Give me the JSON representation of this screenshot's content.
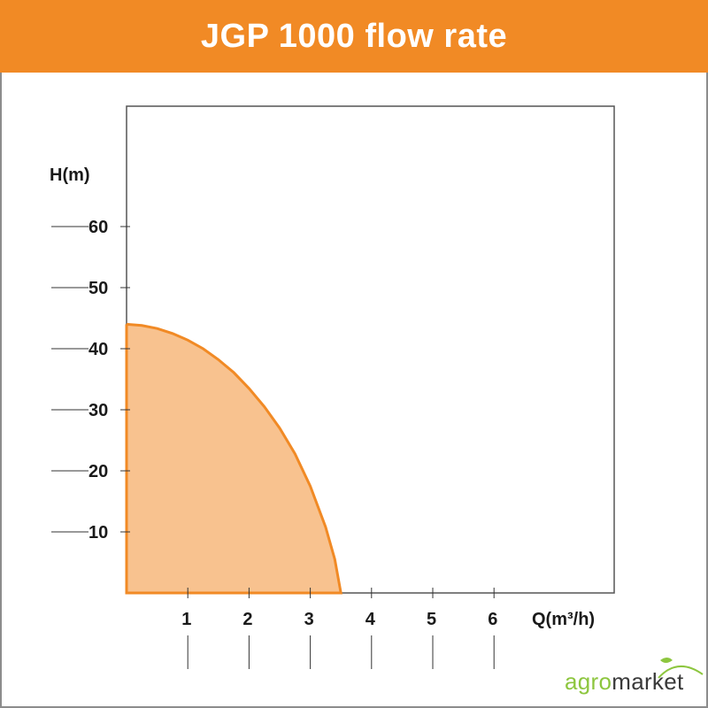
{
  "header": {
    "title": "JGP 1000 flow rate"
  },
  "chart_data": {
    "type": "area",
    "ylabel": "H(m)",
    "xlabel": "Q(m³/h)",
    "xlim": [
      0,
      8
    ],
    "ylim": [
      0,
      80
    ],
    "x_ticks": [
      1,
      2,
      3,
      4,
      5,
      6
    ],
    "y_ticks": [
      10,
      20,
      30,
      40,
      50,
      60
    ],
    "series": [
      {
        "x": [
          0,
          0.25,
          0.5,
          0.75,
          1.0,
          1.25,
          1.5,
          1.75,
          2.0,
          2.25,
          2.5,
          2.75,
          3.0,
          3.25,
          3.4,
          3.5
        ],
        "y": [
          44,
          43.8,
          43.3,
          42.5,
          41.4,
          40.0,
          38.2,
          36.1,
          33.5,
          30.5,
          27.0,
          22.8,
          17.5,
          10.8,
          5.5,
          0
        ]
      }
    ],
    "colors": {
      "fill": "#f8c28f",
      "line": "#f18a25"
    },
    "grid": false,
    "legend": "none"
  },
  "theme": {
    "accent": "#f18a25",
    "logo_green": "#8dc63f"
  },
  "logo": {
    "part1": "agro",
    "part2": "market"
  }
}
